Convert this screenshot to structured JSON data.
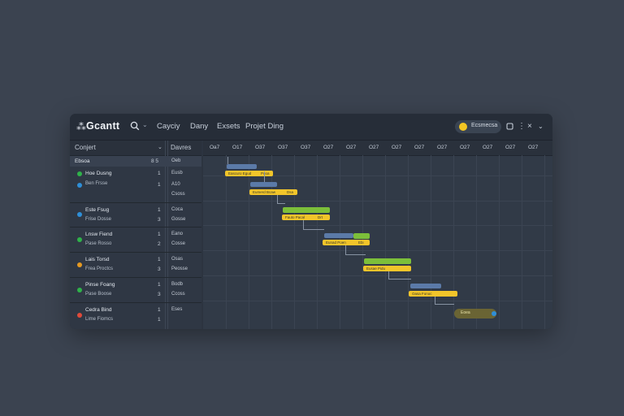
{
  "app": {
    "title": "Gcantt",
    "logo_icon": "gantt-logo-icon"
  },
  "toolbar": {
    "menus": [
      "Cayciy",
      "Dany",
      "Exsets",
      "Projet Ding"
    ],
    "badge_label": "Ecsmecsa",
    "accent": "#f3c623"
  },
  "columns": {
    "task": "Conjert",
    "duration": "Davres"
  },
  "phase_row": {
    "name": "Ebsoa",
    "num": "8 5",
    "duration": "Oeb"
  },
  "groups": [
    {
      "color": "#2fb24a",
      "name": "Hoe Dusng",
      "sub": "Ben Frsse",
      "num1": "1",
      "num2": "1",
      "dur1": "Eusb",
      "dur2": "A10",
      "dur3": "Csoss"
    },
    {
      "color": "#2f8fd8",
      "name": "Este Fsug",
      "sub": "Frise Dosse",
      "num1": "1",
      "num2": "3",
      "dur1": "Coca",
      "dur2": "Gosse"
    },
    {
      "color": "#2fb24a",
      "name": "Lnsw Fiend",
      "sub": "Pase Rosso",
      "num1": "1",
      "num2": "2",
      "dur1": "Eano",
      "dur2": "Cosse"
    },
    {
      "color": "#e69a22",
      "name": "Lais Torsd",
      "sub": "Frea Proctcs",
      "num1": "1",
      "num2": "3",
      "dur1": "Osas",
      "dur2": "Peosse"
    },
    {
      "color": "#2fb24a",
      "name": "Pinse Foang",
      "sub": "Pase Boose",
      "num1": "1",
      "num2": "3",
      "dur1": "Bodb",
      "dur2": "Ccoss"
    },
    {
      "color": "#e04a3a",
      "name": "Cedra Bind",
      "sub": "Lime Fiomcs",
      "num1": "1",
      "num2": "1",
      "dur1": "Eses"
    }
  ],
  "dates": [
    "Oa7",
    "O17",
    "O37",
    "O37",
    "O37",
    "O27",
    "O27",
    "O27",
    "O27",
    "O27",
    "O27",
    "O27",
    "O27",
    "O27",
    "O27"
  ],
  "bars": [
    {
      "label": "Eascuro Egud",
      "color": "#f2c52a",
      "label2": "Pooa"
    },
    {
      "label": "Eumerd Bcaw",
      "color": "#f2c52a",
      "label2": "Dsa"
    },
    {
      "label": "Fauto Pacal",
      "color": "#f2c52a",
      "label2": "Drt"
    },
    {
      "label": "Eunad Poen",
      "color": "#f2c52a",
      "label2": "Ebi"
    },
    {
      "label": "Eusae Pidu",
      "color": "#f2c52a"
    },
    {
      "label": "Oasa Fonoc",
      "color": "#f2c52a"
    },
    {
      "label": "Eoea",
      "color": "#6a6434"
    }
  ],
  "colors": {
    "blue_bar": "#5b7aa8",
    "green_bar": "#7cbf3a",
    "yellow_bar": "#f2c52a"
  }
}
